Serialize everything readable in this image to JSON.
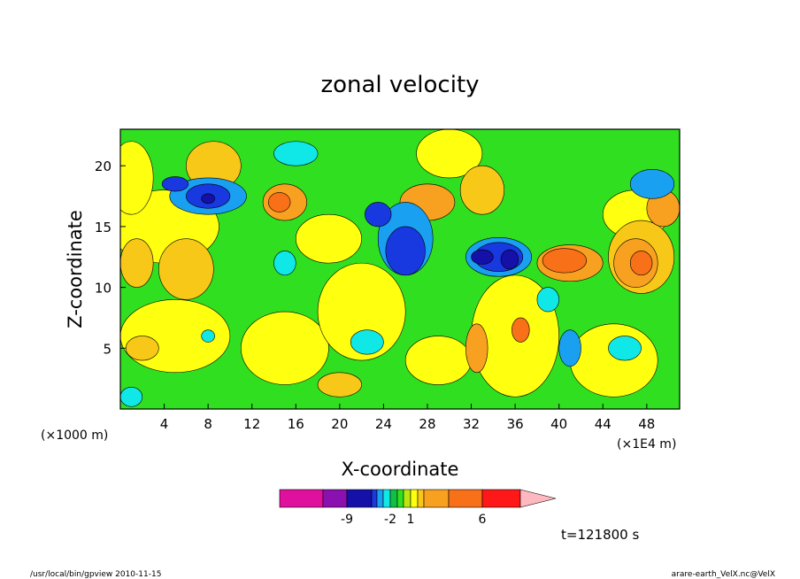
{
  "chart_data": {
    "type": "heatmap",
    "title": "zonal velocity",
    "xlabel": "X-coordinate",
    "ylabel": "Z-coordinate",
    "x_unit": "(×1E4 m)",
    "y_unit": "(×1000 m)",
    "xlim": [
      0,
      51
    ],
    "ylim": [
      0,
      23
    ],
    "x_ticks": [
      4,
      8,
      12,
      16,
      20,
      24,
      28,
      32,
      36,
      40,
      44,
      48
    ],
    "y_ticks": [
      5,
      10,
      15,
      20
    ],
    "x_tick_labels": [
      "4",
      "8",
      "12",
      "16",
      "20",
      "24",
      "28",
      "32",
      "36",
      "40",
      "44",
      "48"
    ],
    "y_tick_labels": [
      "5",
      "10",
      "15",
      "20"
    ],
    "grid": false,
    "colorbar": {
      "bins": [
        {
          "color": "#e0109e"
        },
        {
          "color": "#8a10b0"
        },
        {
          "color": "#1510a8"
        },
        {
          "color": "#1838e0"
        },
        {
          "color": "#1aa0f0"
        },
        {
          "color": "#10e8e8"
        },
        {
          "color": "#10c040"
        },
        {
          "color": "#30e020"
        },
        {
          "color": "#b8e810"
        },
        {
          "color": "#ffff10"
        },
        {
          "color": "#f8c818"
        },
        {
          "color": "#f8a020"
        },
        {
          "color": "#f87018"
        },
        {
          "color": "#ff1818"
        },
        {
          "color": "#ff8078"
        },
        {
          "color": "#ffb8c0"
        }
      ],
      "tick_labels": [
        "-9",
        "-2",
        "1",
        "6"
      ],
      "tick_bins": [
        2,
        6,
        9,
        13
      ]
    },
    "field": [
      {
        "color": "#ffff10",
        "x": 5,
        "y": 6,
        "rx": 5,
        "ry": 3
      },
      {
        "color": "#ffff10",
        "x": 4,
        "y": 15,
        "rx": 5,
        "ry": 3
      },
      {
        "color": "#ffff10",
        "x": 15,
        "y": 5,
        "rx": 4,
        "ry": 3
      },
      {
        "color": "#ffff10",
        "x": 22,
        "y": 8,
        "rx": 4,
        "ry": 4
      },
      {
        "color": "#ffff10",
        "x": 19,
        "y": 14,
        "rx": 3,
        "ry": 2
      },
      {
        "color": "#ffff10",
        "x": 45,
        "y": 4,
        "rx": 4,
        "ry": 3
      },
      {
        "color": "#ffff10",
        "x": 47,
        "y": 16,
        "rx": 3,
        "ry": 2
      },
      {
        "color": "#ffff10",
        "x": 30,
        "y": 21,
        "rx": 3,
        "ry": 2
      },
      {
        "color": "#ffff10",
        "x": 36,
        "y": 6,
        "rx": 4,
        "ry": 5
      },
      {
        "color": "#ffff10",
        "x": 29,
        "y": 4,
        "rx": 3,
        "ry": 2
      },
      {
        "color": "#ffff10",
        "x": 1,
        "y": 19,
        "rx": 2,
        "ry": 3
      },
      {
        "color": "#f8c818",
        "x": 6,
        "y": 11.5,
        "rx": 2.5,
        "ry": 2.5
      },
      {
        "color": "#f8c818",
        "x": 8.5,
        "y": 20,
        "rx": 2.5,
        "ry": 2
      },
      {
        "color": "#f8c818",
        "x": 1.5,
        "y": 12,
        "rx": 1.5,
        "ry": 2
      },
      {
        "color": "#f8c818",
        "x": 2,
        "y": 5,
        "rx": 1.5,
        "ry": 1
      },
      {
        "color": "#f8c818",
        "x": 47.5,
        "y": 12.5,
        "rx": 3,
        "ry": 3
      },
      {
        "color": "#f8c818",
        "x": 33,
        "y": 18,
        "rx": 2,
        "ry": 2
      },
      {
        "color": "#f8c818",
        "x": 20,
        "y": 2,
        "rx": 2,
        "ry": 1
      },
      {
        "color": "#f8a020",
        "x": 15,
        "y": 17,
        "rx": 2,
        "ry": 1.5
      },
      {
        "color": "#f8a020",
        "x": 28,
        "y": 17,
        "rx": 2.5,
        "ry": 1.5
      },
      {
        "color": "#f8a020",
        "x": 41,
        "y": 12,
        "rx": 3,
        "ry": 1.5
      },
      {
        "color": "#f8a020",
        "x": 47,
        "y": 12,
        "rx": 2,
        "ry": 2
      },
      {
        "color": "#f8a020",
        "x": 32.5,
        "y": 5,
        "rx": 1,
        "ry": 2
      },
      {
        "color": "#f8a020",
        "x": 49.5,
        "y": 16.5,
        "rx": 1.5,
        "ry": 1.5
      },
      {
        "color": "#f87018",
        "x": 14.5,
        "y": 17,
        "rx": 1,
        "ry": 0.8
      },
      {
        "color": "#f87018",
        "x": 40.5,
        "y": 12.2,
        "rx": 2,
        "ry": 1
      },
      {
        "color": "#f87018",
        "x": 47.5,
        "y": 12,
        "rx": 1,
        "ry": 1
      },
      {
        "color": "#f87018",
        "x": 36.5,
        "y": 6.5,
        "rx": 0.8,
        "ry": 1
      },
      {
        "color": "#10e8e8",
        "x": 16,
        "y": 21,
        "rx": 2,
        "ry": 1
      },
      {
        "color": "#10e8e8",
        "x": 15,
        "y": 12,
        "rx": 1,
        "ry": 1
      },
      {
        "color": "#10e8e8",
        "x": 22.5,
        "y": 5.5,
        "rx": 1.5,
        "ry": 1
      },
      {
        "color": "#10e8e8",
        "x": 1,
        "y": 1,
        "rx": 1,
        "ry": 0.8
      },
      {
        "color": "#10e8e8",
        "x": 39,
        "y": 9,
        "rx": 1,
        "ry": 1
      },
      {
        "color": "#10e8e8",
        "x": 46,
        "y": 5,
        "rx": 1.5,
        "ry": 1
      },
      {
        "color": "#10e8e8",
        "x": 8,
        "y": 6,
        "rx": 0.6,
        "ry": 0.5
      },
      {
        "color": "#1aa0f0",
        "x": 8,
        "y": 17.5,
        "rx": 3.5,
        "ry": 1.5
      },
      {
        "color": "#1aa0f0",
        "x": 26,
        "y": 14,
        "rx": 2.5,
        "ry": 3
      },
      {
        "color": "#1aa0f0",
        "x": 34.5,
        "y": 12.5,
        "rx": 3,
        "ry": 1.6
      },
      {
        "color": "#1aa0f0",
        "x": 48.5,
        "y": 18.5,
        "rx": 2,
        "ry": 1.2
      },
      {
        "color": "#1aa0f0",
        "x": 41,
        "y": 5,
        "rx": 1,
        "ry": 1.5
      },
      {
        "color": "#1838e0",
        "x": 8,
        "y": 17.5,
        "rx": 2,
        "ry": 1
      },
      {
        "color": "#1838e0",
        "x": 26,
        "y": 13,
        "rx": 1.8,
        "ry": 2
      },
      {
        "color": "#1838e0",
        "x": 34.5,
        "y": 12.5,
        "rx": 2.2,
        "ry": 1.2
      },
      {
        "color": "#1838e0",
        "x": 5,
        "y": 18.5,
        "rx": 1.2,
        "ry": 0.6
      },
      {
        "color": "#1838e0",
        "x": 23.5,
        "y": 16,
        "rx": 1.2,
        "ry": 1
      },
      {
        "color": "#1510a8",
        "x": 8,
        "y": 17.3,
        "rx": 0.6,
        "ry": 0.4
      },
      {
        "color": "#1510a8",
        "x": 33,
        "y": 12.5,
        "rx": 1,
        "ry": 0.6
      },
      {
        "color": "#1510a8",
        "x": 35.5,
        "y": 12.3,
        "rx": 0.8,
        "ry": 0.8
      }
    ]
  },
  "annotations": {
    "time": "t=121800 s",
    "footer_left": "/usr/local/bin/gpview  2010-11-15",
    "footer_right": "arare-earth_VelX.nc@VelX"
  }
}
